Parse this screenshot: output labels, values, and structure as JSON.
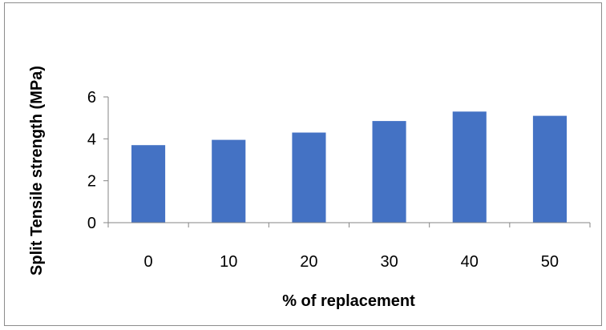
{
  "chart_data": {
    "type": "bar",
    "categories": [
      "0",
      "10",
      "20",
      "30",
      "40",
      "50"
    ],
    "values": [
      3.7,
      3.95,
      4.3,
      4.85,
      5.3,
      5.1
    ],
    "xlabel": "% of replacement",
    "ylabel": "Split Tensile strength (MPa)",
    "ylim": [
      0,
      6
    ],
    "yticks": [
      "0",
      "2",
      "4",
      "6"
    ],
    "grid": false,
    "legend": "none",
    "bar_color": "#4472C4",
    "axis_color": "#868686"
  }
}
